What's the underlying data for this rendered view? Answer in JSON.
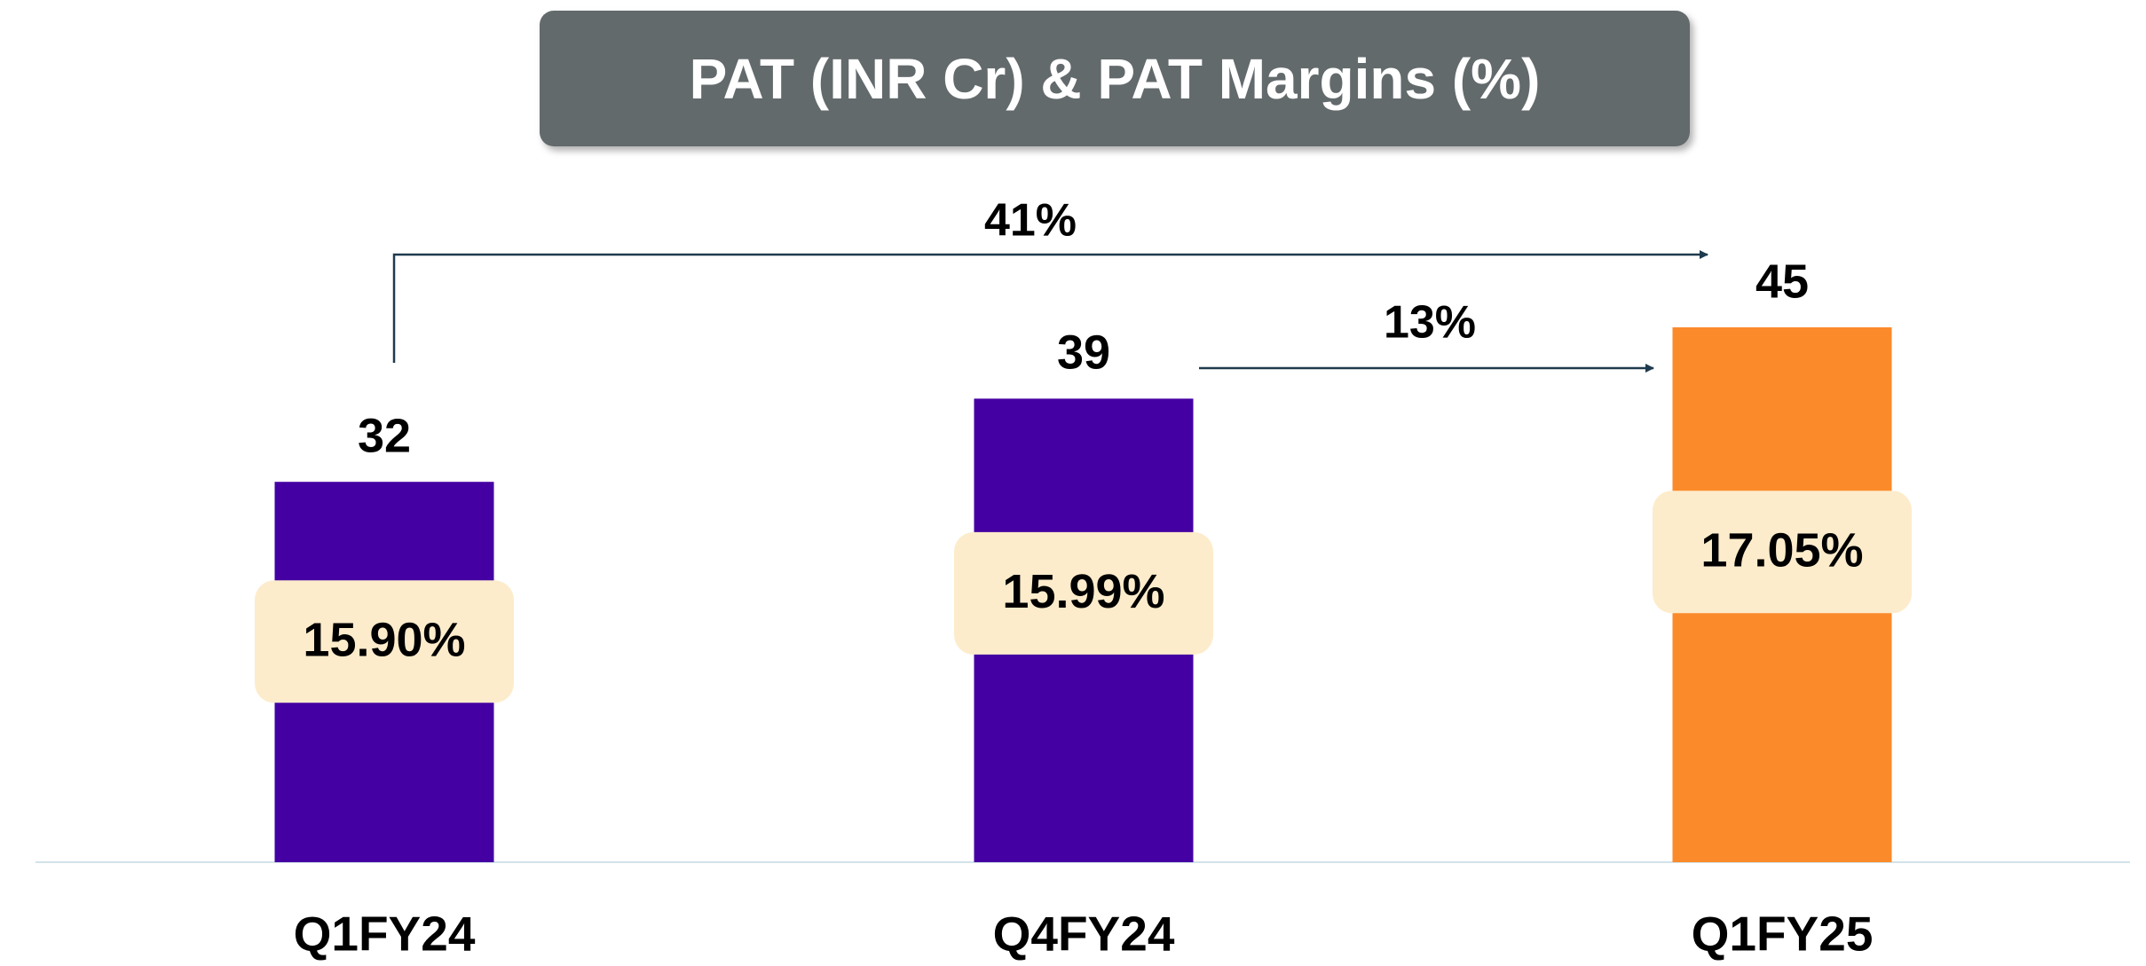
{
  "chart_data": {
    "type": "bar",
    "title": "PAT (INR Cr) & PAT Margins (%)",
    "categories": [
      "Q1FY24",
      "Q4FY24",
      "Q1FY25"
    ],
    "values": [
      32,
      39,
      45
    ],
    "colors": [
      "#4400a3",
      "#4400a3",
      "#fb8a2a"
    ],
    "margins": {
      "values": [
        15.9,
        15.99,
        17.05
      ],
      "value_labels": [
        "15.90%",
        "15.99%",
        "17.05%"
      ]
    },
    "annotations": [
      "41%",
      "13%"
    ]
  }
}
